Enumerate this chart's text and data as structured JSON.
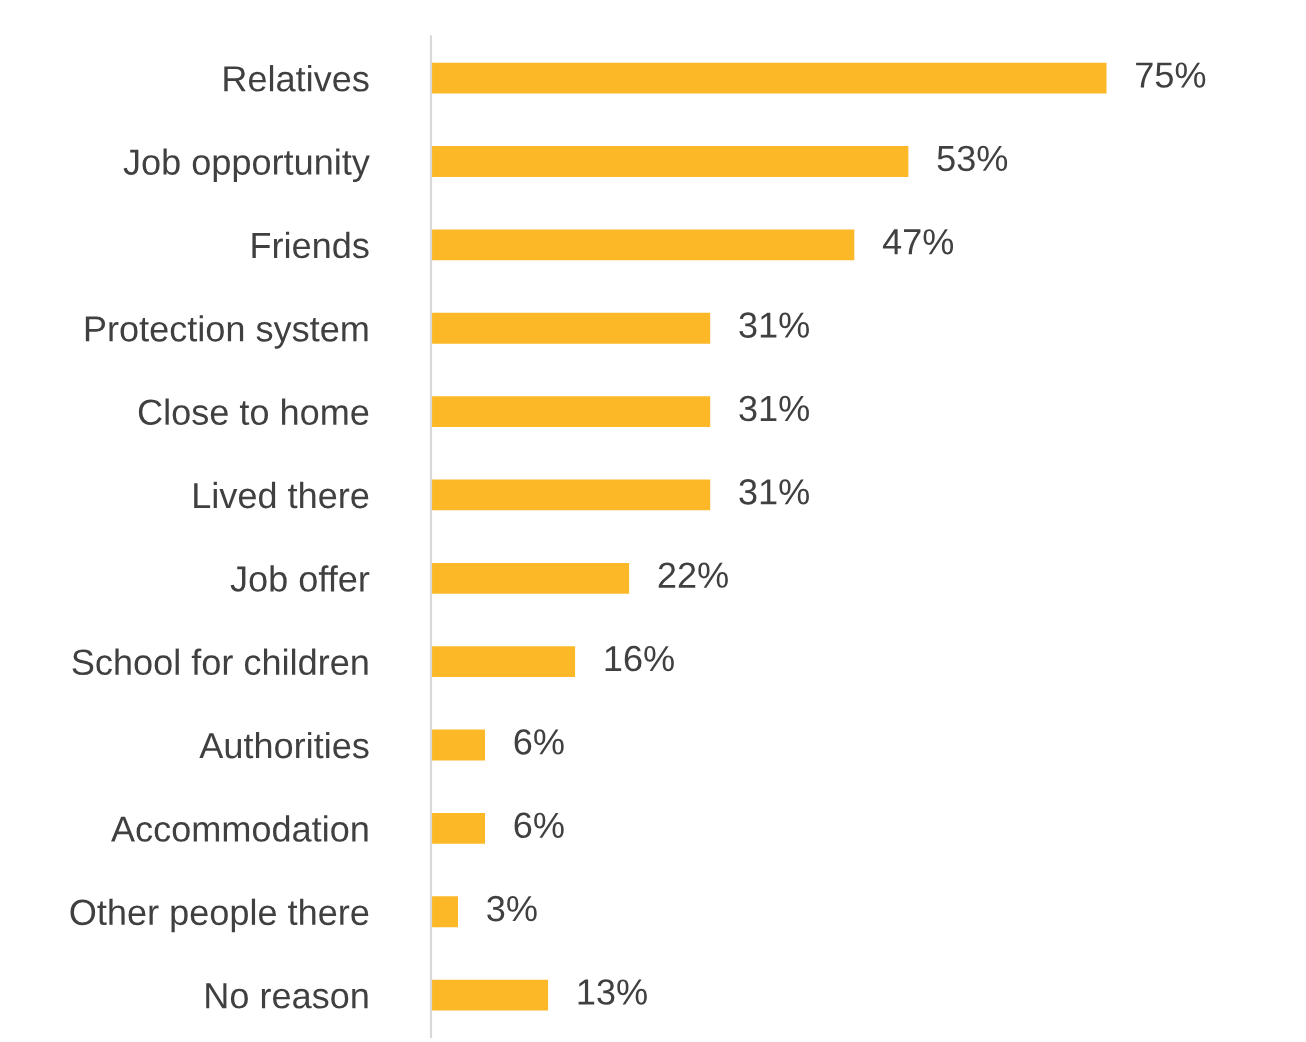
{
  "chart_data": {
    "type": "bar",
    "orientation": "horizontal",
    "categories": [
      "Relatives",
      "Job opportunity",
      "Friends",
      "Protection system",
      "Close to home",
      "Lived there",
      "Job offer",
      "School for children",
      "Authorities",
      "Accommodation",
      "Other people there",
      "No reason"
    ],
    "values": [
      75,
      53,
      47,
      31,
      31,
      31,
      22,
      16,
      6,
      6,
      3,
      13
    ],
    "value_labels": [
      "75%",
      "53%",
      "47%",
      "31%",
      "31%",
      "31%",
      "22%",
      "16%",
      "6%",
      "6%",
      "3%",
      "13%"
    ],
    "color": "#fdb827",
    "tick_labels": "y"
  }
}
